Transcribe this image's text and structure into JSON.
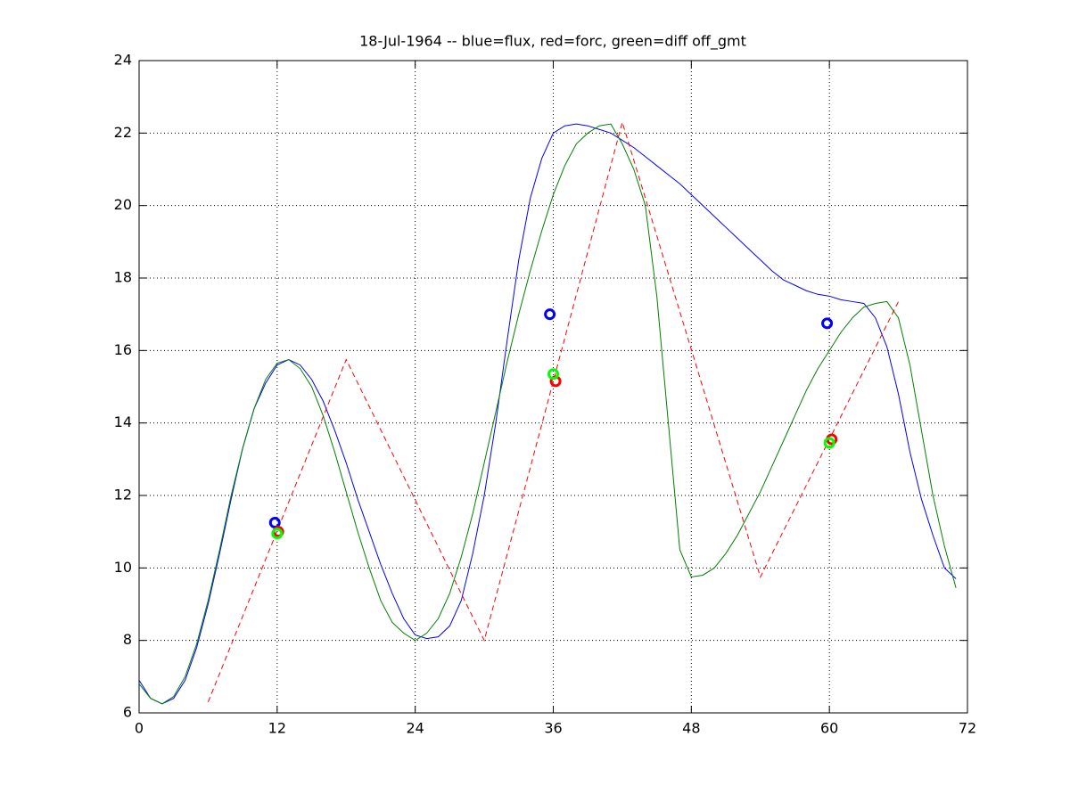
{
  "chart_data": {
    "type": "line",
    "title": "18-Jul-1964 -- blue=flux, red=forc, green=diff off_gmt",
    "xlim": [
      0,
      72
    ],
    "xticks": [
      0,
      12,
      24,
      36,
      48,
      60,
      72
    ],
    "ylim": [
      6,
      24
    ],
    "yticks": [
      6,
      8,
      10,
      12,
      14,
      16,
      18,
      20,
      22,
      24
    ],
    "grid": true,
    "series": [
      {
        "color": "#0000ff",
        "style": "solid",
        "x": [
          0,
          1,
          2,
          3,
          4,
          5,
          6,
          7,
          8,
          9,
          10,
          11,
          12,
          13,
          14,
          15,
          16,
          17,
          18,
          19,
          20,
          21,
          22,
          23,
          24,
          25,
          26,
          27,
          28,
          29,
          30,
          31,
          32,
          33,
          34,
          35,
          36,
          37,
          38,
          39,
          40,
          41,
          42,
          43,
          44,
          45,
          46,
          47,
          48,
          49,
          50,
          51,
          52,
          53,
          54,
          55,
          56,
          57,
          58,
          59,
          60,
          61,
          62,
          63,
          64,
          65,
          66,
          67,
          68,
          69,
          70,
          71
        ],
        "values": [
          6.9,
          6.4,
          6.25,
          6.4,
          6.9,
          7.8,
          9.0,
          10.4,
          11.9,
          13.3,
          14.4,
          15.1,
          15.6,
          15.75,
          15.6,
          15.2,
          14.6,
          13.8,
          12.9,
          11.9,
          11.0,
          10.1,
          9.3,
          8.6,
          8.15,
          8.05,
          8.1,
          8.4,
          9.1,
          10.4,
          12.0,
          14.0,
          16.3,
          18.5,
          20.2,
          21.3,
          22.0,
          22.2,
          22.25,
          22.2,
          22.1,
          22.0,
          21.8,
          21.6,
          21.35,
          21.1,
          20.85,
          20.6,
          20.3,
          20.0,
          19.7,
          19.4,
          19.1,
          18.8,
          18.5,
          18.2,
          17.95,
          17.8,
          17.65,
          17.55,
          17.5,
          17.4,
          17.35,
          17.3,
          16.9,
          16.1,
          14.8,
          13.2,
          11.9,
          10.9,
          10.0,
          9.7
        ]
      },
      {
        "color": "#008000",
        "style": "solid",
        "x": [
          0,
          1,
          2,
          3,
          4,
          5,
          6,
          7,
          8,
          9,
          10,
          11,
          12,
          13,
          14,
          15,
          16,
          17,
          18,
          19,
          20,
          21,
          22,
          23,
          24,
          25,
          26,
          27,
          28,
          29,
          30,
          31,
          32,
          33,
          34,
          35,
          36,
          37,
          38,
          39,
          40,
          41,
          42,
          43,
          44,
          45,
          46,
          47,
          48,
          49,
          50,
          51,
          52,
          53,
          54,
          55,
          56,
          57,
          58,
          59,
          60,
          61,
          62,
          63,
          64,
          65,
          66,
          67,
          68,
          69,
          70,
          71
        ],
        "values": [
          6.8,
          6.4,
          6.25,
          6.45,
          7.0,
          7.9,
          9.1,
          10.5,
          12.0,
          13.3,
          14.4,
          15.2,
          15.65,
          15.75,
          15.5,
          15.0,
          14.2,
          13.2,
          12.1,
          11.0,
          10.0,
          9.1,
          8.5,
          8.2,
          8.0,
          8.2,
          8.6,
          9.3,
          10.3,
          11.5,
          12.9,
          14.3,
          15.7,
          17.0,
          18.2,
          19.3,
          20.3,
          21.1,
          21.7,
          22.0,
          22.2,
          22.25,
          21.7,
          21.0,
          20.0,
          17.5,
          14.0,
          10.5,
          9.75,
          9.8,
          10.0,
          10.4,
          10.9,
          11.5,
          12.1,
          12.8,
          13.5,
          14.2,
          14.9,
          15.5,
          16.0,
          16.5,
          16.9,
          17.2,
          17.3,
          17.35,
          16.9,
          15.6,
          13.8,
          12.0,
          10.6,
          9.45
        ]
      },
      {
        "color": "#ff0000",
        "style": "dashed",
        "x": [
          6,
          18,
          30,
          42,
          54,
          66
        ],
        "values": [
          6.3,
          15.75,
          8.0,
          22.3,
          9.75,
          17.35
        ]
      },
      {
        "color": "#0000ff",
        "marker": "o",
        "x": [
          11.8,
          35.7,
          59.8
        ],
        "values": [
          11.25,
          17.0,
          16.75
        ]
      },
      {
        "color": "#ff0000",
        "marker": "o",
        "x": [
          12.1,
          36.2,
          60.2
        ],
        "values": [
          11.0,
          15.15,
          13.55
        ]
      },
      {
        "color": "#00ff00",
        "marker": "o",
        "x": [
          12.0,
          36.0,
          60.0
        ],
        "values": [
          10.95,
          15.35,
          13.45
        ]
      }
    ]
  }
}
